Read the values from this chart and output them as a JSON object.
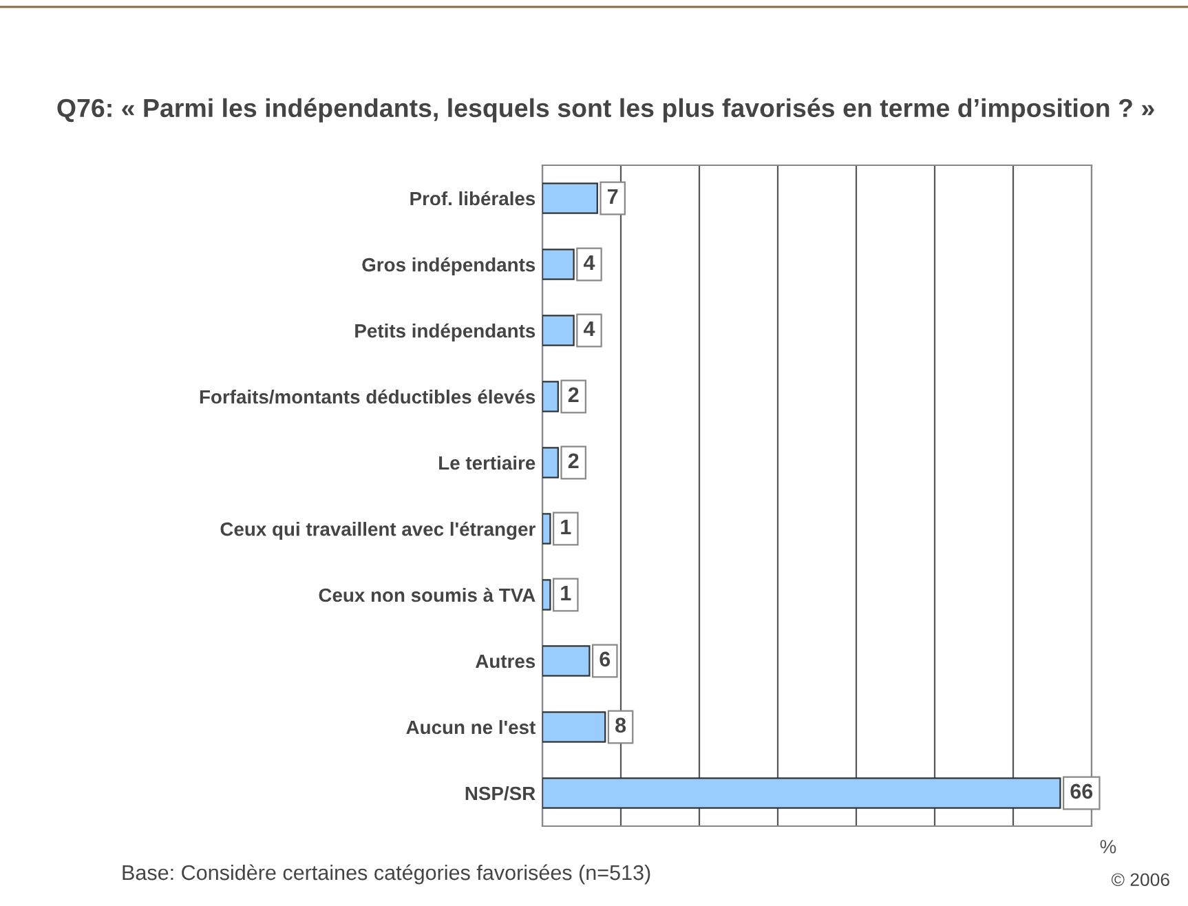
{
  "chart_data": {
    "type": "bar",
    "orientation": "horizontal",
    "title": "Q76: « Parmi les indépendants, lesquels sont les plus favorisés en terme d’imposition ? »",
    "categories": [
      "Prof. libérales",
      "Gros indépendants",
      "Petits indépendants",
      "Forfaits/montants déductibles élevés",
      "Le tertiaire",
      "Ceux qui travaillent avec l'étranger",
      "Ceux non soumis à TVA",
      "Autres",
      "Aucun ne l'est",
      "NSP/SR"
    ],
    "values": [
      7,
      4,
      4,
      2,
      2,
      1,
      1,
      6,
      8,
      66
    ],
    "color": "#99ccff",
    "xlabel": "%",
    "grid": "x",
    "tick_labels": "y",
    "data_labels": true,
    "annotations": [
      "Base: Considère certaines catégories favorisées (n=513)",
      "© 2006"
    ]
  }
}
